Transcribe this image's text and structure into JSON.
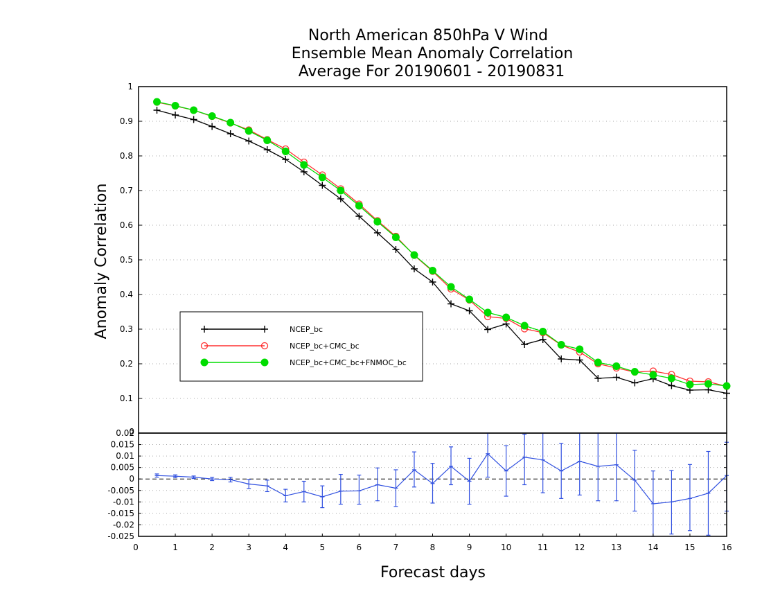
{
  "chart_data": [
    {
      "type": "line",
      "title": [
        "North American 850hPa V Wind",
        "Ensemble Mean Anomaly Correlation",
        "Average For 20190601 - 20190831"
      ],
      "ylabel": "Anomaly Correlation",
      "xlim": [
        0,
        16
      ],
      "ylim": [
        0,
        1
      ],
      "yticks": [
        "1",
        "0.9",
        "0.8",
        "0.7",
        "0.6",
        "0.5",
        "0.4",
        "0.3",
        "0.2",
        "0.1"
      ],
      "grid": true,
      "legend_position": "lower-left",
      "x": [
        0.5,
        1.0,
        1.5,
        2.0,
        2.5,
        3.0,
        3.5,
        4.0,
        4.5,
        5.0,
        5.5,
        6.0,
        6.5,
        7.0,
        7.5,
        8.0,
        8.5,
        9.0,
        9.5,
        10.0,
        10.5,
        11.0,
        11.5,
        12.0,
        12.5,
        13.0,
        13.5,
        14.0,
        14.5,
        15.0,
        15.5,
        16.0
      ],
      "series": [
        {
          "name": "NCEP_bc",
          "color": "#000000",
          "marker": "plus",
          "values": [
            0.932,
            0.918,
            0.905,
            0.885,
            0.864,
            0.843,
            0.818,
            0.79,
            0.754,
            0.715,
            0.676,
            0.626,
            0.578,
            0.53,
            0.474,
            0.436,
            0.373,
            0.353,
            0.299,
            0.315,
            0.256,
            0.27,
            0.214,
            0.211,
            0.158,
            0.161,
            0.145,
            0.157,
            0.137,
            0.124,
            0.125,
            0.115
          ]
        },
        {
          "name": "NCEP_bc+CMC_bc",
          "color": "#ff3030",
          "marker": "open-circle",
          "values": [
            0.955,
            0.944,
            0.932,
            0.914,
            0.895,
            0.875,
            0.847,
            0.82,
            0.782,
            0.745,
            0.705,
            0.661,
            0.613,
            0.568,
            0.513,
            0.467,
            0.416,
            0.384,
            0.336,
            0.331,
            0.301,
            0.29,
            0.254,
            0.234,
            0.2,
            0.188,
            0.176,
            0.179,
            0.169,
            0.15,
            0.148,
            0.135
          ]
        },
        {
          "name": "NCEP_bc+CMC_bc+FNMOC_bc",
          "color": "#00dd00",
          "marker": "filled-circle",
          "values": [
            0.956,
            0.945,
            0.932,
            0.915,
            0.896,
            0.872,
            0.845,
            0.813,
            0.774,
            0.738,
            0.7,
            0.656,
            0.61,
            0.565,
            0.514,
            0.469,
            0.422,
            0.386,
            0.348,
            0.334,
            0.31,
            0.293,
            0.255,
            0.242,
            0.204,
            0.193,
            0.177,
            0.168,
            0.158,
            0.14,
            0.142,
            0.136
          ]
        }
      ]
    },
    {
      "type": "line",
      "xlabel": "Forecast days",
      "xlim": [
        0,
        16
      ],
      "ylim": [
        -0.025,
        0.02
      ],
      "xticks": [
        "0",
        "1",
        "2",
        "3",
        "4",
        "5",
        "6",
        "7",
        "8",
        "9",
        "10",
        "11",
        "12",
        "13",
        "14",
        "15",
        "16"
      ],
      "yticks": [
        "0.02",
        "0.015",
        "0.01",
        "0.005",
        "0",
        "-0.005",
        "-0.01",
        "-0.015",
        "-0.02",
        "-0.025"
      ],
      "top_tick_partial": "0",
      "grid": true,
      "zero_line": true,
      "color": "#3050e0",
      "x": [
        0.5,
        1.0,
        1.5,
        2.0,
        2.5,
        3.0,
        3.5,
        4.0,
        4.5,
        5.0,
        5.5,
        6.0,
        6.5,
        7.0,
        7.5,
        8.0,
        8.5,
        9.0,
        9.5,
        10.0,
        10.5,
        11.0,
        11.5,
        12.0,
        12.5,
        13.0,
        13.5,
        14.0,
        14.5,
        15.0,
        15.5,
        16.0
      ],
      "values": [
        0.0015,
        0.0012,
        0.0008,
        0.0,
        -0.0003,
        -0.0022,
        -0.003,
        -0.0073,
        -0.0055,
        -0.0078,
        -0.0053,
        -0.0052,
        -0.0025,
        -0.004,
        0.004,
        -0.002,
        0.0055,
        -0.001,
        0.011,
        0.0035,
        0.0095,
        0.0083,
        0.0035,
        0.0077,
        0.0055,
        0.0062,
        -0.0005,
        -0.0108,
        -0.01,
        -0.0085,
        -0.0062,
        0.0015
      ],
      "error_low": [
        0.0008,
        0.0006,
        0.0002,
        -0.0007,
        -0.0013,
        -0.0042,
        -0.0055,
        -0.01,
        -0.01,
        -0.0125,
        -0.011,
        -0.011,
        -0.0095,
        -0.012,
        -0.0035,
        -0.0105,
        -0.0025,
        -0.011,
        0.0008,
        -0.0075,
        -0.0025,
        -0.006,
        -0.0085,
        -0.007,
        -0.0095,
        -0.0095,
        -0.014,
        -0.025,
        -0.024,
        -0.0225,
        -0.0245,
        -0.014
      ],
      "error_high": [
        0.0022,
        0.0018,
        0.0013,
        0.0007,
        0.0007,
        -0.0002,
        -0.0005,
        -0.0045,
        -0.001,
        -0.003,
        0.002,
        0.0017,
        0.0048,
        0.004,
        0.0118,
        0.0068,
        0.014,
        0.009,
        0.02,
        0.0145,
        0.0195,
        0.02,
        0.0155,
        0.02,
        0.02,
        0.02,
        0.0125,
        0.0035,
        0.0037,
        0.0063,
        0.012,
        0.016
      ]
    }
  ]
}
